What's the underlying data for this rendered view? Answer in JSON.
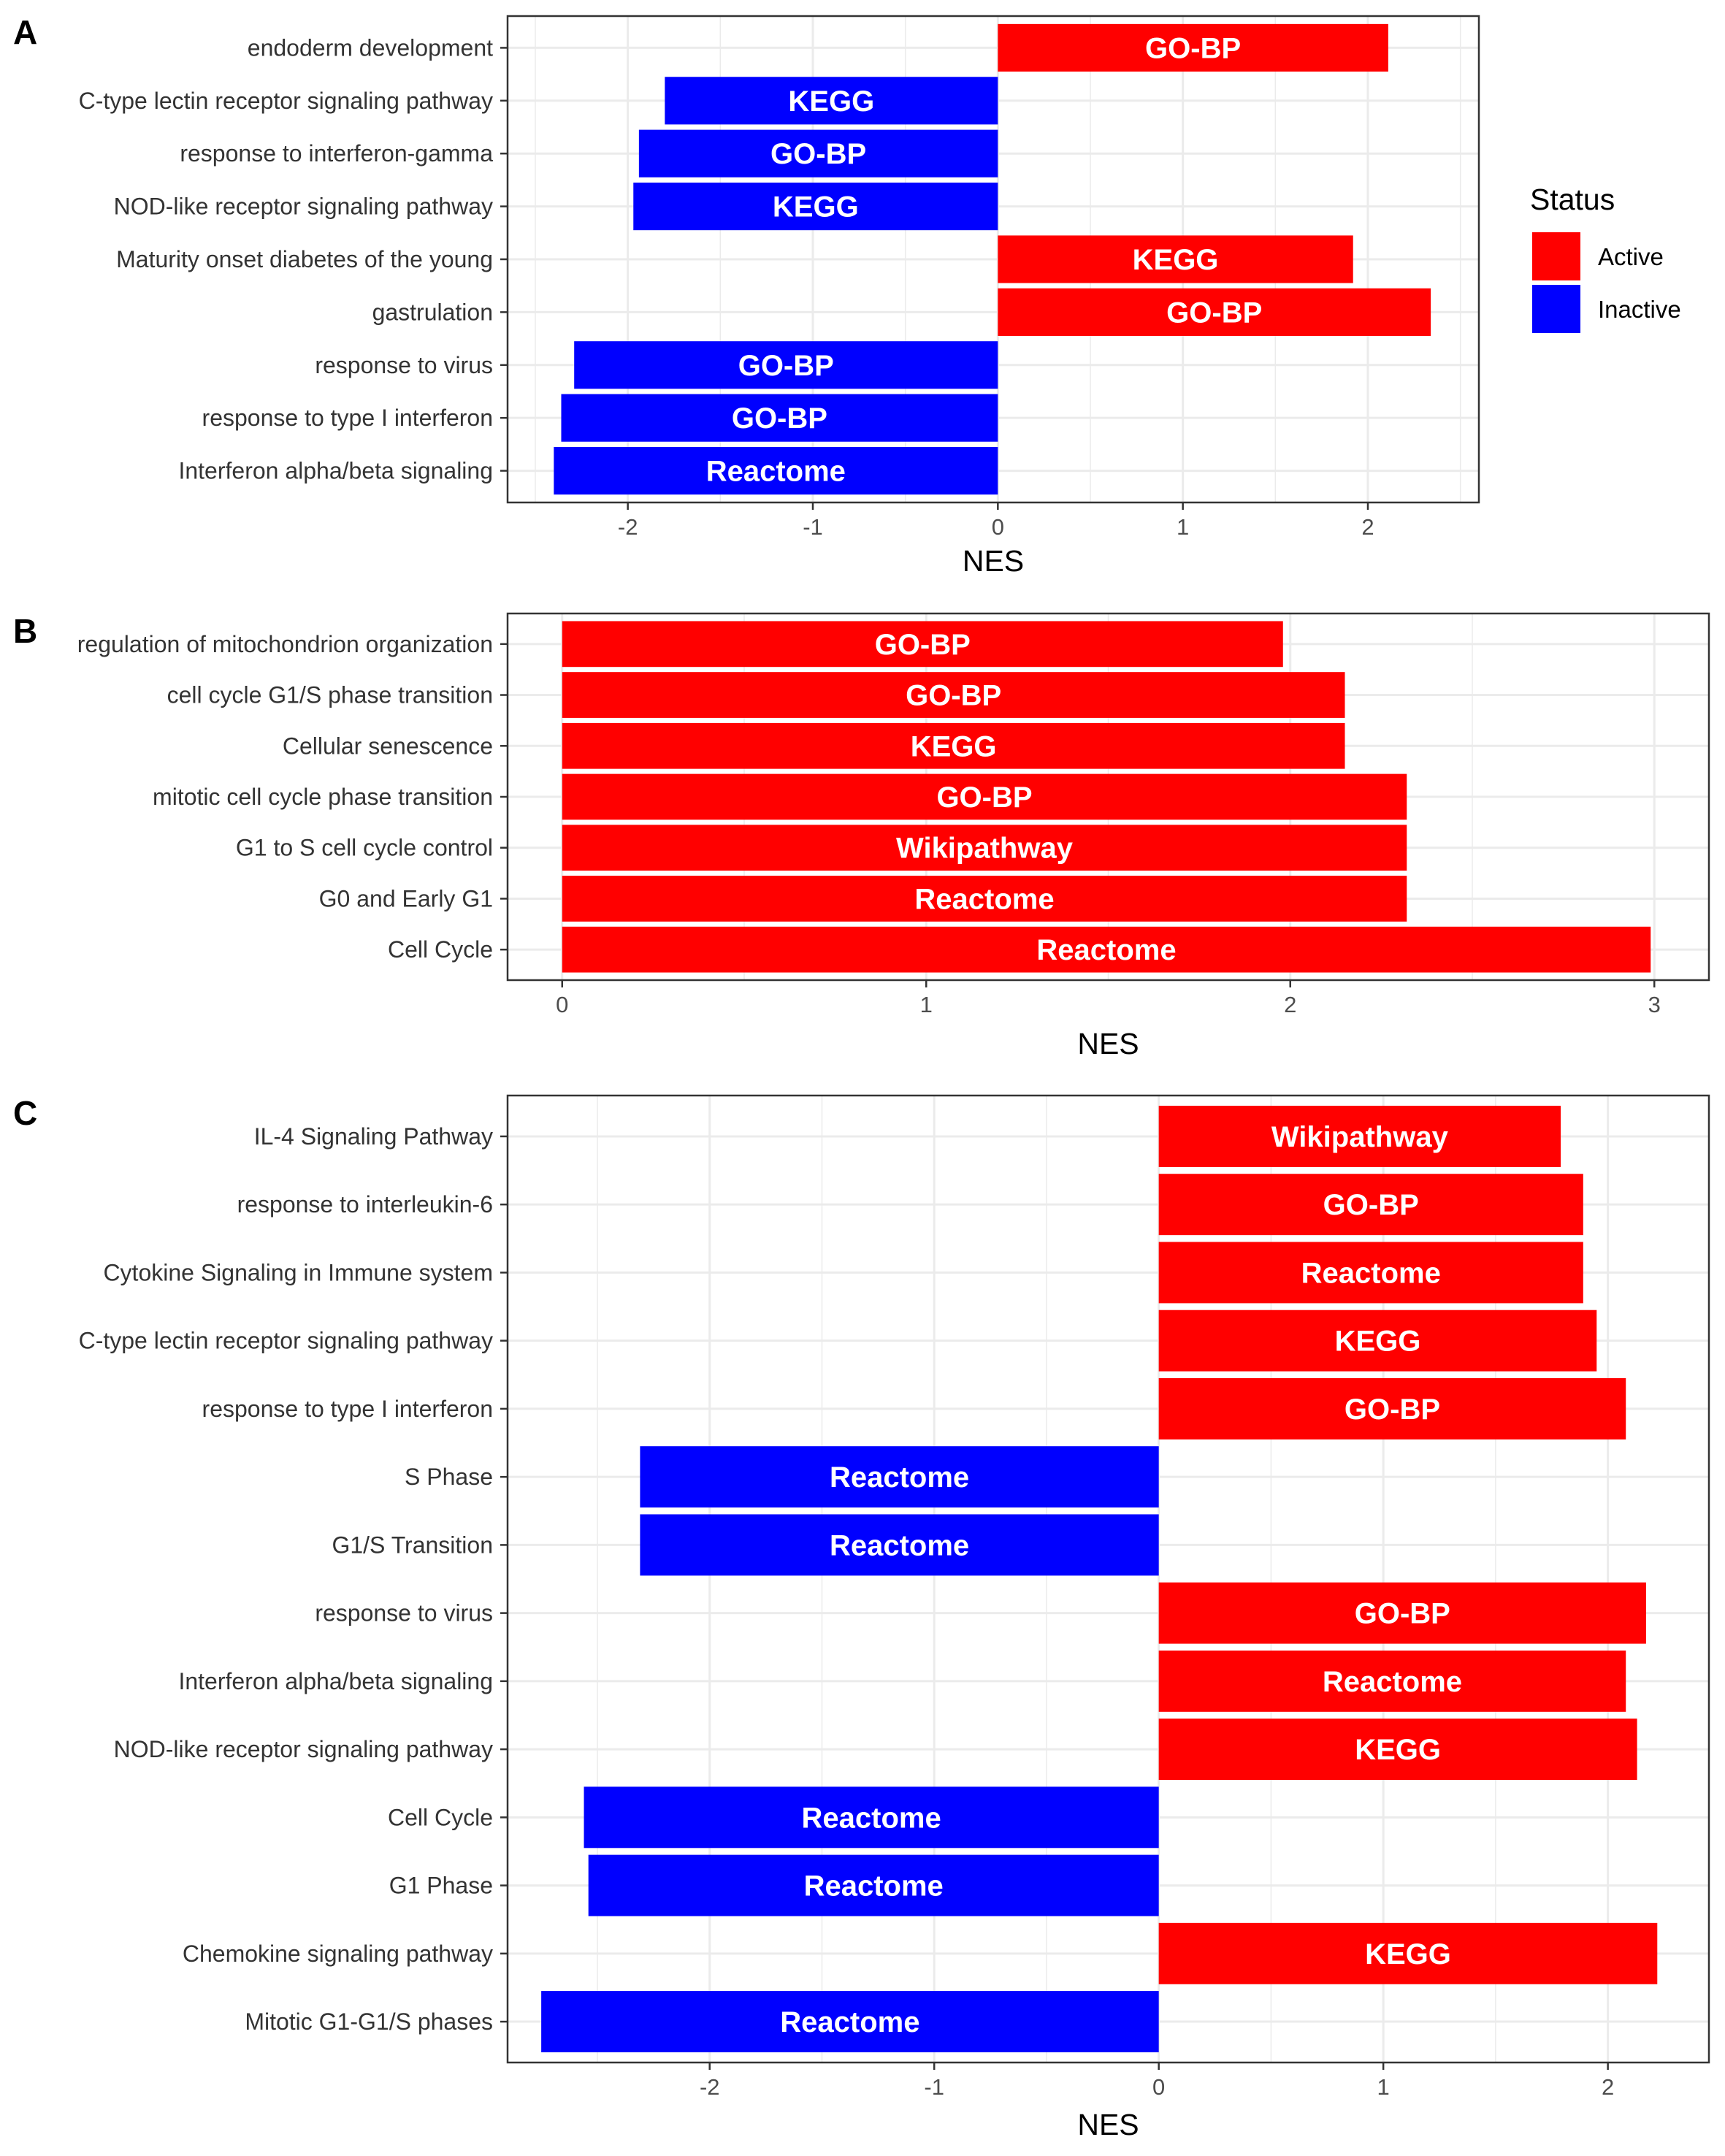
{
  "colors": {
    "Active": "#ff0000",
    "Inactive": "#0000ff",
    "panel_border": "#333333",
    "grid": "#ebebeb"
  },
  "legend": {
    "title": "Status",
    "items": [
      {
        "label": "Active",
        "color": "#ff0000"
      },
      {
        "label": "Inactive",
        "color": "#0000ff"
      }
    ]
  },
  "chart_data": [
    {
      "type": "bar",
      "orientation": "horizontal",
      "panel": "A",
      "xlabel": "NES",
      "ylabel": "",
      "xlim": [
        -2.65,
        2.6
      ],
      "xticks": [
        -2,
        -1,
        0,
        1,
        2
      ],
      "grid": true,
      "legend_position": "right",
      "bars": [
        {
          "term": "endoderm development",
          "value": 2.11,
          "database": "GO-BP",
          "status": "Active"
        },
        {
          "term": "C-type lectin receptor signaling pathway",
          "value": -1.8,
          "database": "KEGG",
          "status": "Inactive"
        },
        {
          "term": "response to interferon-gamma",
          "value": -1.94,
          "database": "GO-BP",
          "status": "Inactive"
        },
        {
          "term": "NOD-like receptor signaling pathway",
          "value": -1.97,
          "database": "KEGG",
          "status": "Inactive"
        },
        {
          "term": "Maturity onset diabetes of the young",
          "value": 1.92,
          "database": "KEGG",
          "status": "Active"
        },
        {
          "term": "gastrulation",
          "value": 2.34,
          "database": "GO-BP",
          "status": "Active"
        },
        {
          "term": "response to virus",
          "value": -2.29,
          "database": "GO-BP",
          "status": "Inactive"
        },
        {
          "term": "response to type I interferon",
          "value": -2.36,
          "database": "GO-BP",
          "status": "Inactive"
        },
        {
          "term": "Interferon alpha/beta signaling",
          "value": -2.4,
          "database": "Reactome",
          "status": "Inactive"
        }
      ]
    },
    {
      "type": "bar",
      "orientation": "horizontal",
      "panel": "B",
      "xlabel": "NES",
      "ylabel": "",
      "xlim": [
        -0.15,
        3.15
      ],
      "xticks": [
        0,
        1,
        2,
        3
      ],
      "grid": true,
      "bars": [
        {
          "term": "regulation of mitochondrion organization",
          "value": 1.98,
          "database": "GO-BP",
          "status": "Active"
        },
        {
          "term": "cell cycle G1/S phase transition",
          "value": 2.15,
          "database": "GO-BP",
          "status": "Active"
        },
        {
          "term": "Cellular senescence",
          "value": 2.15,
          "database": "KEGG",
          "status": "Active"
        },
        {
          "term": "mitotic cell cycle phase transition",
          "value": 2.32,
          "database": "GO-BP",
          "status": "Active"
        },
        {
          "term": "G1 to S cell cycle control",
          "value": 2.32,
          "database": "Wikipathway",
          "status": "Active"
        },
        {
          "term": "G0 and Early G1",
          "value": 2.32,
          "database": "Reactome",
          "status": "Active"
        },
        {
          "term": "Cell Cycle",
          "value": 2.99,
          "database": "Reactome",
          "status": "Active"
        }
      ]
    },
    {
      "type": "bar",
      "orientation": "horizontal",
      "panel": "C",
      "xlabel": "NES",
      "ylabel": "",
      "xlim": [
        -2.9,
        2.45
      ],
      "xticks": [
        -2,
        -1,
        0,
        1,
        2
      ],
      "grid": true,
      "bars": [
        {
          "term": "IL-4 Signaling Pathway",
          "value": 1.79,
          "database": "Wikipathway",
          "status": "Active"
        },
        {
          "term": "response to interleukin-6",
          "value": 1.89,
          "database": "GO-BP",
          "status": "Active"
        },
        {
          "term": "Cytokine Signaling in Immune system",
          "value": 1.89,
          "database": "Reactome",
          "status": "Active"
        },
        {
          "term": "C-type lectin receptor signaling pathway",
          "value": 1.95,
          "database": "KEGG",
          "status": "Active"
        },
        {
          "term": "response to type I interferon",
          "value": 2.08,
          "database": "GO-BP",
          "status": "Active"
        },
        {
          "term": "S Phase",
          "value": -2.31,
          "database": "Reactome",
          "status": "Inactive"
        },
        {
          "term": "G1/S Transition",
          "value": -2.31,
          "database": "Reactome",
          "status": "Inactive"
        },
        {
          "term": "response to virus",
          "value": 2.17,
          "database": "GO-BP",
          "status": "Active"
        },
        {
          "term": "Interferon alpha/beta signaling",
          "value": 2.08,
          "database": "Reactome",
          "status": "Active"
        },
        {
          "term": "NOD-like receptor signaling pathway",
          "value": 2.13,
          "database": "KEGG",
          "status": "Active"
        },
        {
          "term": "Cell Cycle",
          "value": -2.56,
          "database": "Reactome",
          "status": "Inactive"
        },
        {
          "term": "G1 Phase",
          "value": -2.54,
          "database": "Reactome",
          "status": "Inactive"
        },
        {
          "term": "Chemokine signaling pathway",
          "value": 2.22,
          "database": "KEGG",
          "status": "Active"
        },
        {
          "term": "Mitotic G1-G1/S phases",
          "value": -2.75,
          "database": "Reactome",
          "status": "Inactive"
        }
      ]
    }
  ]
}
